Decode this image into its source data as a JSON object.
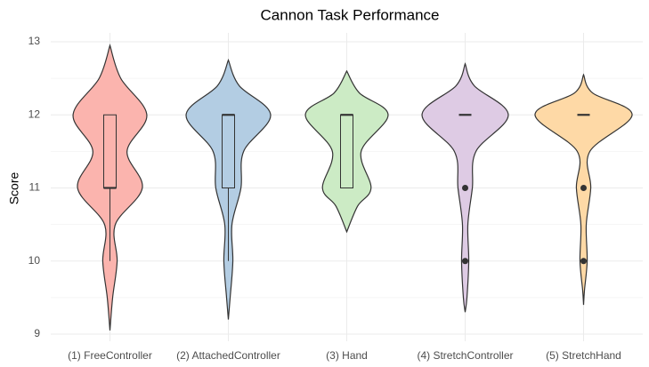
{
  "chart_data": {
    "type": "violin",
    "title": "Cannon Task Performance",
    "y_label": "Score",
    "categories": [
      "(1) FreeController",
      "(2) AttachedController",
      "(3) Hand",
      "(4) StretchController",
      "(5) StretchHand"
    ],
    "groups": [
      {
        "color": "#fbb4ae",
        "violin_y": [
          9.05,
          9.5,
          10,
          10.5,
          11,
          11.5,
          12,
          12.5,
          12.95
        ],
        "density": [
          0,
          3,
          8,
          6,
          36,
          19,
          41,
          12,
          0
        ],
        "box": {
          "lower": 10,
          "q1": 11,
          "median": 11,
          "q3": 12,
          "upper": 12
        },
        "outliers": []
      },
      {
        "color": "#b3cde3",
        "violin_y": [
          9.2,
          9.5,
          10,
          10.5,
          11,
          11.5,
          12,
          12.4,
          12.75
        ],
        "density": [
          0,
          2,
          5,
          4,
          14,
          17,
          47,
          12,
          0
        ],
        "box": {
          "lower": 10,
          "q1": 11,
          "median": 12,
          "q3": 12,
          "upper": 12
        },
        "outliers": []
      },
      {
        "color": "#ccebc5",
        "violin_y": [
          10.4,
          10.75,
          11,
          11.5,
          12,
          12.3,
          12.6
        ],
        "density": [
          0,
          12,
          27,
          16,
          46,
          14,
          0
        ],
        "box": {
          "lower": 11,
          "q1": 11,
          "median": 12,
          "q3": 12,
          "upper": 12
        },
        "outliers": []
      },
      {
        "color": "#decbe4",
        "violin_y": [
          9.3,
          9.5,
          10,
          10.5,
          11,
          11.5,
          12,
          12.4,
          12.7
        ],
        "density": [
          0,
          2,
          4,
          3,
          8,
          12,
          48,
          10,
          0
        ],
        "box": {
          "lower": 12,
          "q1": 12,
          "median": 12,
          "q3": 12,
          "upper": 12
        },
        "outliers": [
          11,
          10
        ]
      },
      {
        "color": "#fed9a6",
        "violin_y": [
          9.4,
          9.6,
          10,
          10.5,
          11,
          11.5,
          12,
          12.3,
          12.55
        ],
        "density": [
          0,
          1,
          4,
          3,
          8,
          7,
          54,
          10,
          0
        ],
        "box": {
          "lower": 12,
          "q1": 12,
          "median": 12,
          "q3": 12,
          "upper": 12
        },
        "outliers": [
          11,
          10
        ]
      }
    ],
    "ylim": [
      9,
      13
    ],
    "yticks": [
      9,
      10,
      11,
      12,
      13
    ],
    "grid": true
  }
}
